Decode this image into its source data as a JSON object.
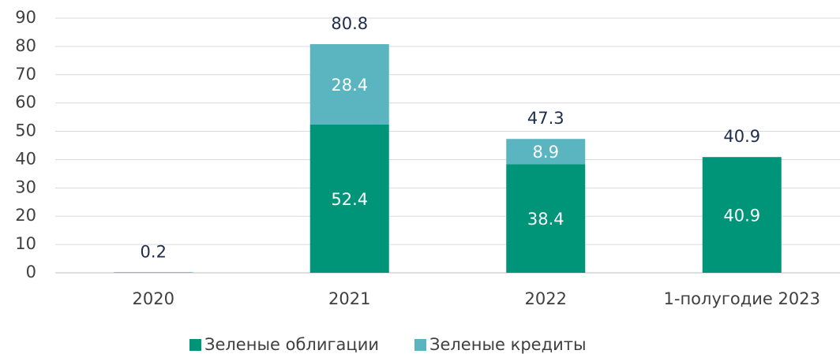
{
  "chart_data": {
    "type": "stacked_bar",
    "categories": [
      "2020",
      "2021",
      "2022",
      "1-полугодие 2023"
    ],
    "series": [
      {
        "name": "Зеленые облигации",
        "color": "#009479",
        "values": [
          0.1,
          52.4,
          38.4,
          40.9
        ]
      },
      {
        "name": "Зеленые кредиты",
        "color": "#5ab5c0",
        "values": [
          0.1,
          28.4,
          8.9,
          null
        ]
      }
    ],
    "totals": [
      0.2,
      80.8,
      47.3,
      40.9
    ],
    "ylim": [
      0,
      90
    ],
    "yticks": [
      0,
      10,
      20,
      30,
      40,
      50,
      60,
      70,
      80,
      90
    ],
    "grid": true,
    "legend": "bottom"
  }
}
